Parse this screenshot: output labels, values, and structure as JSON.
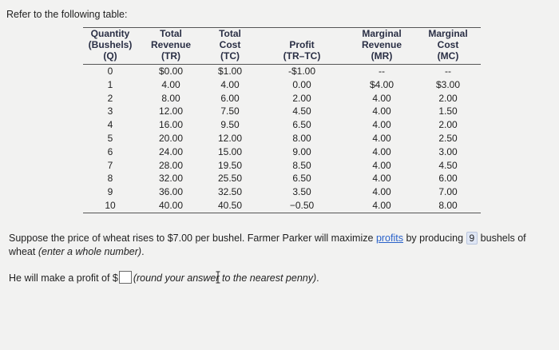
{
  "intro_text": "Refer to the following table:",
  "table": {
    "headers": [
      [
        "Quantity",
        "(Bushels)",
        "(Q)"
      ],
      [
        "Total",
        "Revenue",
        "(TR)"
      ],
      [
        "Total",
        "Cost",
        "(TC)"
      ],
      [
        "Profit",
        "(TR–TC)"
      ],
      [
        "Marginal",
        "Revenue",
        "(MR)"
      ],
      [
        "Marginal",
        "Cost",
        "(MC)"
      ]
    ],
    "rows": [
      [
        "0",
        "$0.00",
        "$1.00",
        "-$1.00",
        "--",
        "--"
      ],
      [
        "1",
        "4.00",
        "4.00",
        "0.00",
        "$4.00",
        "$3.00"
      ],
      [
        "2",
        "8.00",
        "6.00",
        "2.00",
        "4.00",
        "2.00"
      ],
      [
        "3",
        "12.00",
        "7.50",
        "4.50",
        "4.00",
        "1.50"
      ],
      [
        "4",
        "16.00",
        "9.50",
        "6.50",
        "4.00",
        "2.00"
      ],
      [
        "5",
        "20.00",
        "12.00",
        "8.00",
        "4.00",
        "2.50"
      ],
      [
        "6",
        "24.00",
        "15.00",
        "9.00",
        "4.00",
        "3.00"
      ],
      [
        "7",
        "28.00",
        "19.50",
        "8.50",
        "4.00",
        "4.50"
      ],
      [
        "8",
        "32.00",
        "25.50",
        "6.50",
        "4.00",
        "6.00"
      ],
      [
        "9",
        "36.00",
        "32.50",
        "3.50",
        "4.00",
        "7.00"
      ],
      [
        "10",
        "40.00",
        "40.50",
        "−0.50",
        "4.00",
        "8.00"
      ]
    ]
  },
  "question": {
    "part1": "Suppose the price of wheat rises to $7.00 per bushel. Farmer Parker will maximize ",
    "link_text": "profits",
    "part2": " by producing ",
    "answer_value": "9",
    "part3": " bushels of wheat ",
    "hint": "(enter a whole number)",
    "end": "."
  },
  "profit_line": {
    "prefix": "He will make a profit of $",
    "input_value": "",
    "hint": "(round your answer to the nearest penny)",
    "end": "."
  }
}
